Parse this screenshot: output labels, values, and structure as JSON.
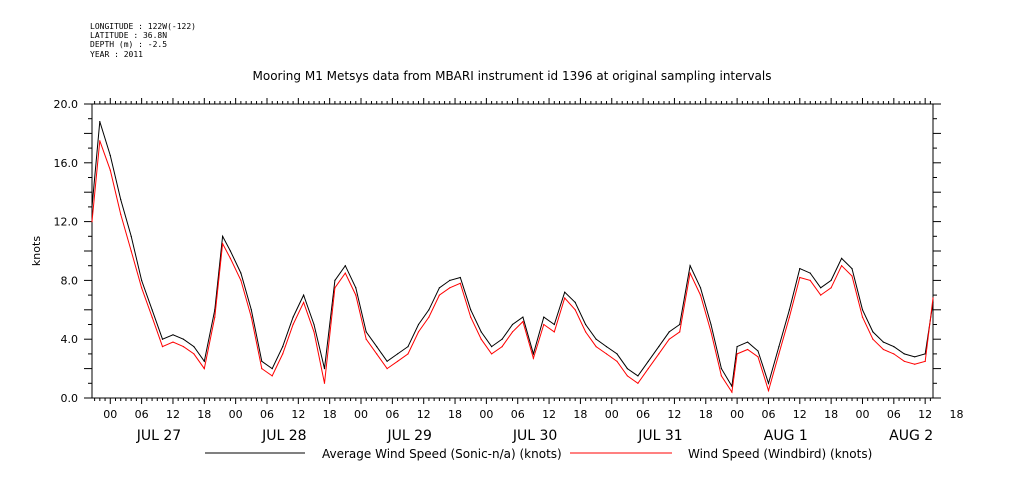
{
  "header": {
    "longitude": "LONGITUDE : 122W(-122)",
    "latitude": "LATITUDE : 36.8N",
    "depth": "DEPTH (m) : -2.5",
    "year": "YEAR : 2011"
  },
  "colors": {
    "series1": "#000000",
    "series2": "#ff0000"
  },
  "chart_data": {
    "type": "line",
    "title": "Mooring M1 Metsys data from MBARI instrument id 1396 at original sampling intervals",
    "ylabel": "knots",
    "xlabel": "",
    "ylim": [
      0.0,
      20.0
    ],
    "yticks": [
      "0.0",
      "4.0",
      "8.0",
      "12.0",
      "16.0",
      "20.0"
    ],
    "xlim_hours": [
      -3.5,
      157.5
    ],
    "x_tick_labels": [
      "00",
      "06",
      "12",
      "18",
      "00",
      "06",
      "12",
      "18",
      "00",
      "06",
      "12",
      "18",
      "00",
      "06",
      "12",
      "18",
      "00",
      "06",
      "12",
      "18",
      "00",
      "06",
      "12",
      "18",
      "00",
      "06",
      "12",
      "18"
    ],
    "day_labels": [
      "JUL 27",
      "JUL 28",
      "JUL 29",
      "JUL 30",
      "JUL 31",
      "AUG  1",
      "AUG  2"
    ],
    "grid": false,
    "legend_position": "bottom",
    "series": [
      {
        "name": "Average Wind Speed (Sonic-n/a) (knots)",
        "x_hours": [
          -3.5,
          -2,
          0,
          2,
          4,
          6,
          8,
          10,
          12,
          14,
          16,
          18,
          20,
          21.5,
          23,
          25,
          27,
          29,
          31,
          33,
          35,
          37,
          39,
          41,
          43,
          45,
          47,
          49,
          51,
          53,
          55,
          57,
          59,
          61,
          63,
          65,
          67,
          69,
          71,
          73,
          75,
          77,
          79,
          81,
          83,
          85,
          87,
          89,
          91,
          93,
          95,
          97,
          99,
          101,
          103,
          105,
          107,
          109,
          111,
          113,
          115,
          117,
          119,
          120,
          122,
          124,
          126,
          128,
          130,
          132,
          134,
          136,
          138,
          140,
          142,
          144,
          146,
          148,
          150,
          152,
          154,
          156,
          157.5
        ],
        "values": [
          13.0,
          18.8,
          16.5,
          13.5,
          11.0,
          8.0,
          6.0,
          4.0,
          4.3,
          4.0,
          3.5,
          2.5,
          6.0,
          11.0,
          10.0,
          8.5,
          6.0,
          2.5,
          2.0,
          3.5,
          5.5,
          7.0,
          5.0,
          2.0,
          8.0,
          9.0,
          7.5,
          4.5,
          3.5,
          2.5,
          3.0,
          3.5,
          5.0,
          6.0,
          7.5,
          8.0,
          8.2,
          6.0,
          4.5,
          3.5,
          4.0,
          5.0,
          5.5,
          3.0,
          5.5,
          5.0,
          7.2,
          6.5,
          5.0,
          4.0,
          3.5,
          3.0,
          2.0,
          1.5,
          2.5,
          3.5,
          4.5,
          5.0,
          9.0,
          7.5,
          5.0,
          2.0,
          0.8,
          3.5,
          3.8,
          3.2,
          1.0,
          3.5,
          6.0,
          8.8,
          8.5,
          7.5,
          8.0,
          9.5,
          8.8,
          6.0,
          4.5,
          3.8,
          3.5,
          3.0,
          2.8,
          3.0,
          6.5
        ]
      },
      {
        "name": "Wind Speed (Windbird) (knots)",
        "x_hours": [
          -3.5,
          -2,
          0,
          2,
          4,
          6,
          8,
          10,
          12,
          14,
          16,
          18,
          20,
          21.5,
          23,
          25,
          27,
          29,
          31,
          33,
          35,
          37,
          39,
          41,
          43,
          45,
          47,
          49,
          51,
          53,
          55,
          57,
          59,
          61,
          63,
          65,
          67,
          69,
          71,
          73,
          75,
          77,
          79,
          81,
          83,
          85,
          87,
          89,
          91,
          93,
          95,
          97,
          99,
          101,
          103,
          105,
          107,
          109,
          111,
          113,
          115,
          117,
          119,
          120,
          122,
          124,
          126,
          128,
          130,
          132,
          134,
          136,
          138,
          140,
          142,
          144,
          146,
          148,
          150,
          152,
          154,
          156,
          157.5
        ],
        "values": [
          12.0,
          17.5,
          15.5,
          12.5,
          10.0,
          7.5,
          5.5,
          3.5,
          3.8,
          3.5,
          3.0,
          2.0,
          5.5,
          10.5,
          9.5,
          8.0,
          5.5,
          2.0,
          1.5,
          3.0,
          5.0,
          6.5,
          4.5,
          1.0,
          7.5,
          8.5,
          7.0,
          4.0,
          3.0,
          2.0,
          2.5,
          3.0,
          4.5,
          5.5,
          7.0,
          7.5,
          7.8,
          5.5,
          4.0,
          3.0,
          3.5,
          4.5,
          5.2,
          2.7,
          5.0,
          4.5,
          6.8,
          6.0,
          4.5,
          3.5,
          3.0,
          2.5,
          1.5,
          1.0,
          2.0,
          3.0,
          4.0,
          4.5,
          8.5,
          7.0,
          4.5,
          1.5,
          0.4,
          3.0,
          3.3,
          2.8,
          0.5,
          3.0,
          5.5,
          8.2,
          8.0,
          7.0,
          7.5,
          9.0,
          8.3,
          5.5,
          4.0,
          3.3,
          3.0,
          2.5,
          2.3,
          2.5,
          6.8
        ]
      }
    ]
  }
}
